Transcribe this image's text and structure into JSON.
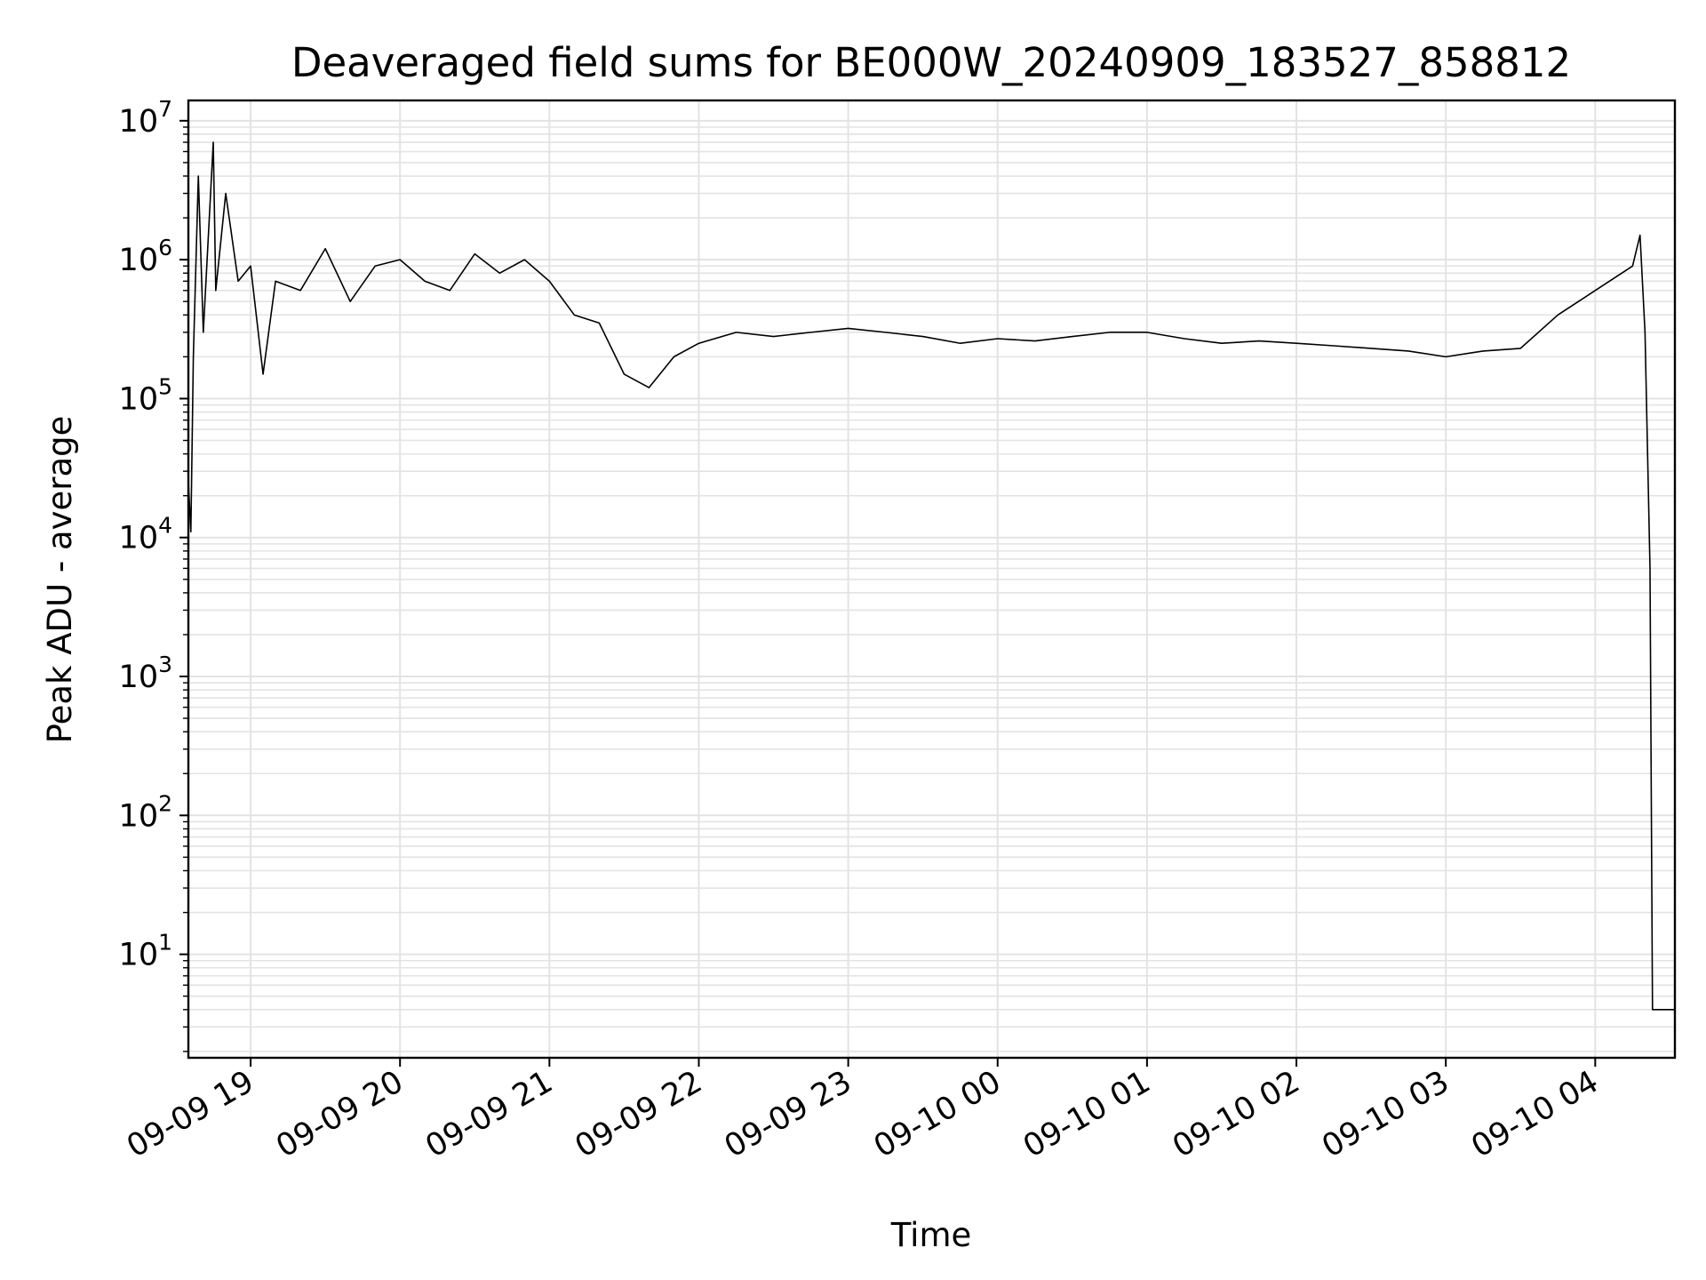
{
  "chart_data": {
    "type": "line",
    "title": "Deaveraged field sums for BE000W_20240909_183527_858812",
    "xlabel": "Time",
    "ylabel": "Peak ADU - average",
    "y_scale": "log",
    "ylim": [
      1.8,
      14000000
    ],
    "xlim": [
      "09-09 18:35",
      "09-10 04:32"
    ],
    "grid": true,
    "line_color": "#000000",
    "x_ticks": [
      {
        "time": "09-09 19:00",
        "label": "09-09 19"
      },
      {
        "time": "09-09 20:00",
        "label": "09-09 20"
      },
      {
        "time": "09-09 21:00",
        "label": "09-09 21"
      },
      {
        "time": "09-09 22:00",
        "label": "09-09 22"
      },
      {
        "time": "09-09 23:00",
        "label": "09-09 23"
      },
      {
        "time": "09-10 00:00",
        "label": "09-10 00"
      },
      {
        "time": "09-10 01:00",
        "label": "09-10 01"
      },
      {
        "time": "09-10 02:00",
        "label": "09-10 02"
      },
      {
        "time": "09-10 03:00",
        "label": "09-10 03"
      },
      {
        "time": "09-10 04:00",
        "label": "09-10 04"
      }
    ],
    "y_ticks": [
      {
        "value": 10,
        "base": "10",
        "exp": "1"
      },
      {
        "value": 100,
        "base": "10",
        "exp": "2"
      },
      {
        "value": 1000,
        "base": "10",
        "exp": "3"
      },
      {
        "value": 10000,
        "base": "10",
        "exp": "4"
      },
      {
        "value": 100000,
        "base": "10",
        "exp": "5"
      },
      {
        "value": 1000000,
        "base": "10",
        "exp": "6"
      },
      {
        "value": 10000000,
        "base": "10",
        "exp": "7"
      }
    ],
    "series": [
      {
        "points": [
          [
            "09-09 18:35",
            25000
          ],
          [
            "09-09 18:36",
            11000
          ],
          [
            "09-09 18:37",
            200000
          ],
          [
            "09-09 18:39",
            4000000
          ],
          [
            "09-09 18:41",
            300000
          ],
          [
            "09-09 18:45",
            7000000
          ],
          [
            "09-09 18:46",
            600000
          ],
          [
            "09-09 18:50",
            3000000
          ],
          [
            "09-09 18:55",
            700000
          ],
          [
            "09-09 19:00",
            900000
          ],
          [
            "09-09 19:05",
            150000
          ],
          [
            "09-09 19:10",
            700000
          ],
          [
            "09-09 19:20",
            600000
          ],
          [
            "09-09 19:30",
            1200000
          ],
          [
            "09-09 19:40",
            500000
          ],
          [
            "09-09 19:50",
            900000
          ],
          [
            "09-09 20:00",
            1000000
          ],
          [
            "09-09 20:10",
            700000
          ],
          [
            "09-09 20:20",
            600000
          ],
          [
            "09-09 20:30",
            1100000
          ],
          [
            "09-09 20:40",
            800000
          ],
          [
            "09-09 20:50",
            1000000
          ],
          [
            "09-09 21:00",
            700000
          ],
          [
            "09-09 21:10",
            400000
          ],
          [
            "09-09 21:20",
            350000
          ],
          [
            "09-09 21:30",
            150000
          ],
          [
            "09-09 21:40",
            120000
          ],
          [
            "09-09 21:50",
            200000
          ],
          [
            "09-09 22:00",
            250000
          ],
          [
            "09-09 22:15",
            300000
          ],
          [
            "09-09 22:30",
            280000
          ],
          [
            "09-09 22:45",
            300000
          ],
          [
            "09-09 23:00",
            320000
          ],
          [
            "09-09 23:15",
            300000
          ],
          [
            "09-09 23:30",
            280000
          ],
          [
            "09-09 23:45",
            250000
          ],
          [
            "09-10 00:00",
            270000
          ],
          [
            "09-10 00:15",
            260000
          ],
          [
            "09-10 00:30",
            280000
          ],
          [
            "09-10 00:45",
            300000
          ],
          [
            "09-10 01:00",
            300000
          ],
          [
            "09-10 01:15",
            270000
          ],
          [
            "09-10 01:30",
            250000
          ],
          [
            "09-10 01:45",
            260000
          ],
          [
            "09-10 02:00",
            250000
          ],
          [
            "09-10 02:15",
            240000
          ],
          [
            "09-10 02:30",
            230000
          ],
          [
            "09-10 02:45",
            220000
          ],
          [
            "09-10 03:00",
            200000
          ],
          [
            "09-10 03:15",
            220000
          ],
          [
            "09-10 03:30",
            230000
          ],
          [
            "09-10 03:45",
            400000
          ],
          [
            "09-10 04:00",
            600000
          ],
          [
            "09-10 04:15",
            900000
          ],
          [
            "09-10 04:18",
            1500000
          ],
          [
            "09-10 04:20",
            300000
          ],
          [
            "09-10 04:22",
            6000
          ],
          [
            "09-10 04:23",
            4
          ],
          [
            "09-10 04:32",
            4
          ]
        ]
      }
    ]
  }
}
